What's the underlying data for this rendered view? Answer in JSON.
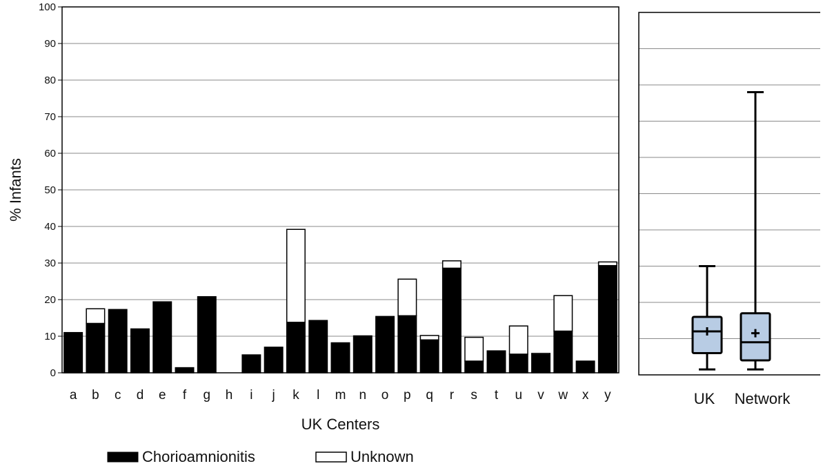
{
  "chart_data": [
    {
      "type": "bar",
      "stacked": true,
      "xlabel": "UK Centers",
      "ylabel": "% Infants",
      "ylim": [
        0,
        100
      ],
      "yticks": [
        0,
        10,
        20,
        30,
        40,
        50,
        60,
        70,
        80,
        90,
        100
      ],
      "grid": true,
      "categories": [
        "a",
        "b",
        "c",
        "d",
        "e",
        "f",
        "g",
        "h",
        "i",
        "j",
        "k",
        "l",
        "m",
        "n",
        "o",
        "p",
        "q",
        "r",
        "s",
        "t",
        "u",
        "v",
        "w",
        "x",
        "y"
      ],
      "series": [
        {
          "name": "Chorioamnionitis",
          "color": "#000000",
          "values": [
            11,
            13.5,
            17.3,
            12,
            19.4,
            1.4,
            20.8,
            0,
            4.9,
            7,
            13.8,
            14.3,
            8.2,
            10.1,
            15.4,
            15.6,
            9,
            28.6,
            3.2,
            6,
            5.1,
            5,
            11.4,
            3.2,
            29.3
          ]
        },
        {
          "name": "Unknown",
          "color": "#ffffff",
          "values": [
            0,
            4,
            0,
            0,
            0,
            0,
            0,
            0,
            0,
            0,
            25.4,
            0,
            0,
            0,
            0,
            10,
            1.2,
            2,
            6.5,
            0,
            7.7,
            0.3,
            9.7,
            0,
            1
          ]
        }
      ],
      "legend": "bottom"
    },
    {
      "type": "box",
      "categories": [
        "UK",
        "Network"
      ],
      "ylim": [
        0,
        100
      ],
      "boxes": [
        {
          "min": 1.5,
          "q1": 6,
          "median": 12,
          "mean": 12,
          "q3": 16,
          "max": 30
        },
        {
          "min": 1.5,
          "q1": 4,
          "median": 9,
          "mean": 11.5,
          "q3": 17,
          "max": 78
        }
      ],
      "fill": "#b8cce4"
    }
  ]
}
